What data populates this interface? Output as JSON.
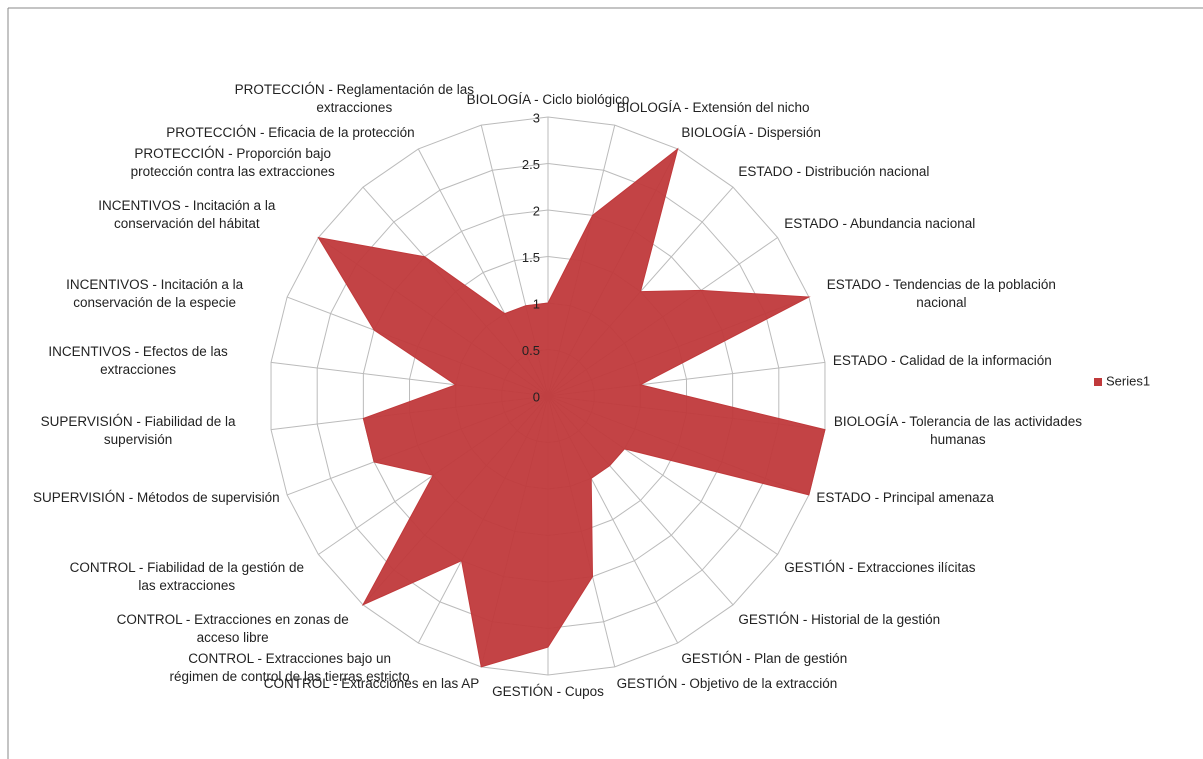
{
  "chart_data": {
    "type": "radar",
    "categories": [
      "BIOLOGÍA - Ciclo biológico",
      "BIOLOGÍA - Extensión del nicho",
      "BIOLOGÍA - Dispersión",
      "ESTADO - Distribución nacional",
      "ESTADO - Abundancia nacional",
      "ESTADO - Tendencias de la población nacional",
      "ESTADO - Calidad de la información",
      "BIOLOGÍA - Tolerancia de las actividades humanas",
      "ESTADO - Principal amenaza",
      "GESTIÓN - Extracciones ilícitas",
      "GESTIÓN - Historial de la gestión",
      "GESTIÓN - Plan de gestión",
      "GESTIÓN - Objetivo de la extracción",
      "GESTIÓN - Cupos",
      "CONTROL - Extracciones en las AP",
      "CONTROL - Extracciones bajo un régimen de control de las tierras estricto",
      "CONTROL - Extracciones en zonas de acceso libre",
      "CONTROL - Fiabilidad de la gestión de las extracciones",
      "SUPERVISIÓN - Métodos de supervisión",
      "SUPERVISIÓN - Fiabilidad de la supervisión",
      "INCENTIVOS - Efectos de las extracciones",
      "INCENTIVOS - Incitación a la conservación de la especie",
      "INCENTIVOS - Incitación a la conservación del hábitat",
      "PROTECCIÓN - Proporción bajo protección contra las extracciones",
      "PROTECCIÓN - Eficacia de la protección",
      "PROTECCIÓN - Reglamentación de las extracciones"
    ],
    "series": [
      {
        "name": "Series1",
        "color": "#c0393b",
        "values": [
          1,
          2,
          3,
          1.5,
          2,
          3,
          1,
          3,
          3,
          1,
          1,
          1,
          2,
          2.7,
          3,
          2,
          3,
          1.5,
          2,
          2,
          1,
          2,
          3,
          2,
          1,
          1
        ]
      }
    ],
    "ylim": [
      0,
      3
    ],
    "yticks": [
      0,
      0.5,
      1,
      1.5,
      2,
      2.5,
      3
    ],
    "grid": true,
    "legend": "right"
  }
}
